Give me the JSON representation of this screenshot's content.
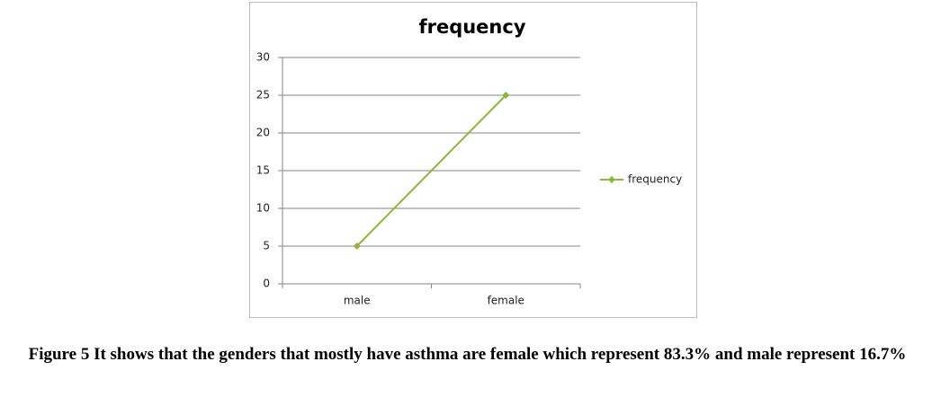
{
  "chart_data": {
    "type": "line",
    "title": "frequency",
    "categories": [
      "male",
      "female"
    ],
    "series": [
      {
        "name": "frequency",
        "color": "#8cb63c",
        "values": [
          5,
          25
        ]
      }
    ],
    "ylim": [
      0,
      30
    ],
    "yticks": [
      0,
      5,
      10,
      15,
      20,
      25,
      30
    ],
    "grid": true,
    "legend": "right"
  },
  "caption": "Figure 5 It shows that the genders that mostly have asthma are female which represent 83.3% and male represent 16.7%"
}
